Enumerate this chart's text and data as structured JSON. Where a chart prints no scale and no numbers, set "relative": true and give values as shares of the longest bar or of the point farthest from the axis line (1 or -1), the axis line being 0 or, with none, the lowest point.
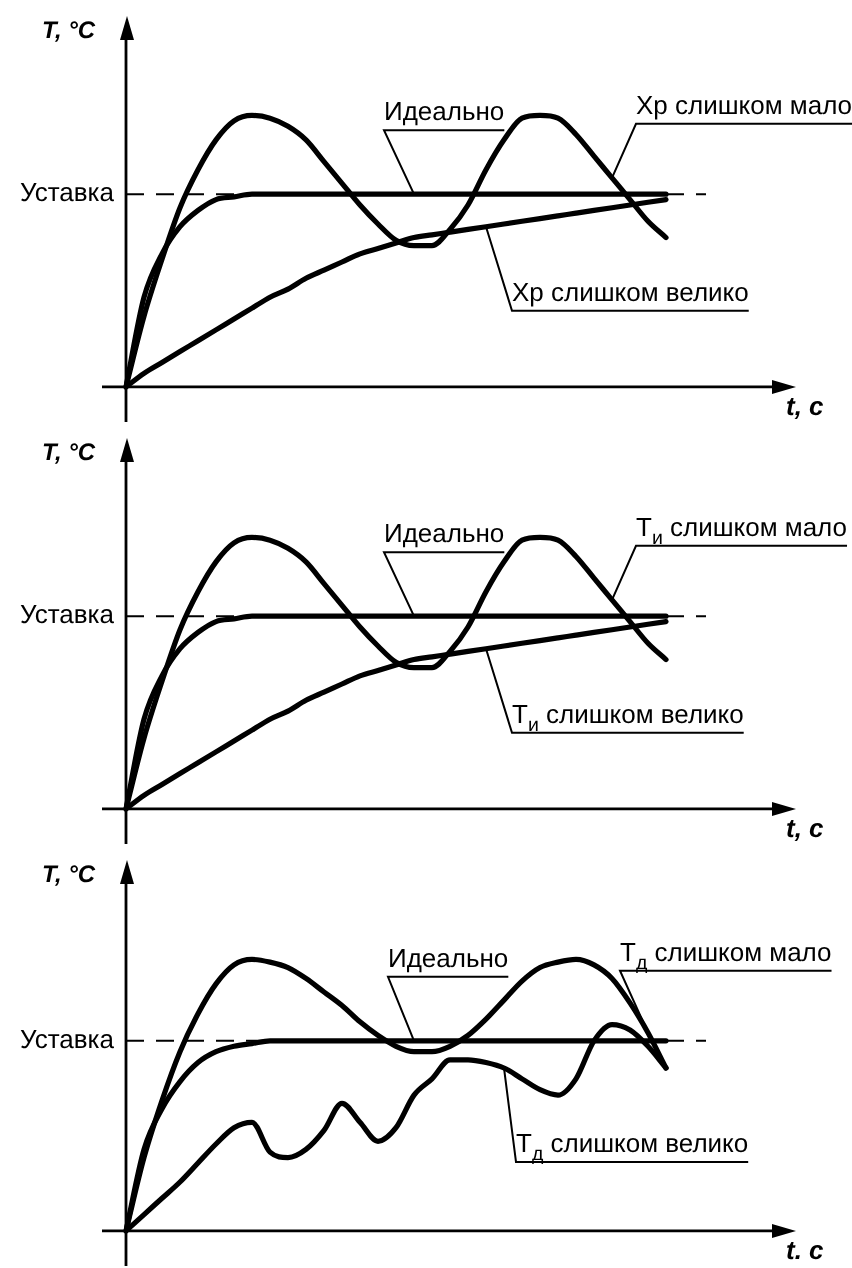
{
  "chart_data": [
    {
      "type": "line",
      "xlabel": "t, c",
      "ylabel": "T, °C",
      "relative": true,
      "legend": false,
      "grid": false,
      "tick_labels": false,
      "marker": "none",
      "line_style": "solid",
      "categories": [
        null,
        null,
        null,
        null,
        null,
        null,
        null,
        null,
        null,
        null,
        null,
        null,
        null,
        null,
        null,
        null,
        null,
        null,
        null,
        null,
        null,
        null,
        null,
        null,
        null,
        null,
        null,
        null,
        null,
        null,
        null,
        null,
        null,
        null,
        null,
        null,
        null
      ],
      "ref_lines": [
        {
          "axis": "y",
          "value": 0.71,
          "label": "Уставка",
          "line_style": "dashed"
        }
      ],
      "series": [
        {
          "name": "Идеально",
          "color": "#000000",
          "values": [
            0,
            0.33,
            0.49,
            0.59,
            0.65,
            0.69,
            0.7,
            0.71,
            0.71,
            0.71,
            0.71,
            0.71,
            0.71,
            0.71,
            0.71,
            0.71,
            0.71,
            0.71,
            0.71,
            0.71,
            0.71,
            0.71,
            0.71,
            0.71,
            0.71,
            0.71,
            0.71,
            0.71,
            0.71,
            0.71,
            0.71,
            null,
            null,
            null,
            null,
            null,
            null
          ]
        },
        {
          "name": "Xp слишком мало",
          "color": "#000000",
          "values": [
            0,
            0.26,
            0.47,
            0.66,
            0.8,
            0.91,
            0.98,
            1,
            0.99,
            0.96,
            0.91,
            0.83,
            0.75,
            0.67,
            0.6,
            0.54,
            0.52,
            0.52,
            0.58,
            0.67,
            0.8,
            0.91,
            0.99,
            1,
            0.99,
            0.93,
            0.85,
            0.77,
            0.69,
            0.61,
            0.55,
            null,
            null,
            null,
            null,
            null,
            null
          ]
        },
        {
          "name": "Xp слишком велико",
          "color": "#000000",
          "values": [
            0,
            0.05,
            0.09,
            0.13,
            0.17,
            0.21,
            0.25,
            0.29,
            0.33,
            0.36,
            0.4,
            0.43,
            0.46,
            0.49,
            0.51,
            0.53,
            0.55,
            0.56,
            0.57,
            0.58,
            0.59,
            0.6,
            0.61,
            0.62,
            0.63,
            0.64,
            0.65,
            0.66,
            0.67,
            0.68,
            0.69,
            null,
            null,
            null,
            null,
            null,
            null
          ]
        }
      ]
    },
    {
      "type": "line",
      "xlabel": "t, c",
      "ylabel": "T, °C",
      "relative": true,
      "legend": false,
      "grid": false,
      "tick_labels": false,
      "marker": "none",
      "line_style": "solid",
      "categories": [
        null,
        null,
        null,
        null,
        null,
        null,
        null,
        null,
        null,
        null,
        null,
        null,
        null,
        null,
        null,
        null,
        null,
        null,
        null,
        null,
        null,
        null,
        null,
        null,
        null,
        null,
        null,
        null,
        null,
        null,
        null,
        null,
        null,
        null,
        null,
        null,
        null
      ],
      "ref_lines": [
        {
          "axis": "y",
          "value": 0.71,
          "label": "Уставка",
          "line_style": "dashed"
        }
      ],
      "series": [
        {
          "name": "Идеально",
          "color": "#000000",
          "values": [
            0,
            0.33,
            0.49,
            0.59,
            0.65,
            0.69,
            0.7,
            0.71,
            0.71,
            0.71,
            0.71,
            0.71,
            0.71,
            0.71,
            0.71,
            0.71,
            0.71,
            0.71,
            0.71,
            0.71,
            0.71,
            0.71,
            0.71,
            0.71,
            0.71,
            0.71,
            0.71,
            0.71,
            0.71,
            0.71,
            0.71,
            null,
            null,
            null,
            null,
            null,
            null
          ]
        },
        {
          "name": "T$_{и}$ слишком мало",
          "color": "#000000",
          "values": [
            0,
            0.26,
            0.47,
            0.66,
            0.8,
            0.91,
            0.98,
            1,
            0.99,
            0.96,
            0.91,
            0.83,
            0.75,
            0.67,
            0.6,
            0.54,
            0.52,
            0.52,
            0.58,
            0.67,
            0.8,
            0.91,
            0.99,
            1,
            0.99,
            0.93,
            0.85,
            0.77,
            0.69,
            0.61,
            0.55,
            null,
            null,
            null,
            null,
            null,
            null
          ]
        },
        {
          "name": "T$_{и}$ слишком велико",
          "color": "#000000",
          "values": [
            0,
            0.05,
            0.09,
            0.13,
            0.17,
            0.21,
            0.25,
            0.29,
            0.33,
            0.36,
            0.4,
            0.43,
            0.46,
            0.49,
            0.51,
            0.53,
            0.55,
            0.56,
            0.57,
            0.58,
            0.59,
            0.6,
            0.61,
            0.62,
            0.63,
            0.64,
            0.65,
            0.66,
            0.67,
            0.68,
            0.69,
            null,
            null,
            null,
            null,
            null,
            null
          ]
        }
      ]
    },
    {
      "type": "line",
      "xlabel": "t. c",
      "ylabel": "T, °C",
      "relative": true,
      "legend": false,
      "grid": false,
      "tick_labels": false,
      "marker": "none",
      "line_style": "solid",
      "categories": [
        null,
        null,
        null,
        null,
        null,
        null,
        null,
        null,
        null,
        null,
        null,
        null,
        null,
        null,
        null,
        null,
        null,
        null,
        null,
        null,
        null,
        null,
        null,
        null,
        null,
        null,
        null,
        null,
        null,
        null,
        null,
        null,
        null,
        null,
        null,
        null,
        null
      ],
      "ref_lines": [
        {
          "axis": "y",
          "value": 0.7,
          "label": "Уставка",
          "line_style": "dashed"
        }
      ],
      "series": [
        {
          "name": "Идеально",
          "color": "#000000",
          "values": [
            0,
            0.3,
            0.45,
            0.55,
            0.62,
            0.66,
            0.68,
            0.69,
            0.7,
            0.7,
            0.7,
            0.7,
            0.7,
            0.7,
            0.7,
            0.7,
            0.7,
            0.7,
            0.7,
            0.7,
            0.7,
            0.7,
            0.7,
            0.7,
            0.7,
            0.7,
            0.7,
            0.7,
            0.7,
            0.7,
            0.7,
            null,
            null,
            null,
            null,
            null,
            null
          ]
        },
        {
          "name": "T$_{д}$ слишком мало",
          "color": "#000000",
          "values": [
            0,
            0.27,
            0.48,
            0.66,
            0.8,
            0.91,
            0.98,
            1,
            0.99,
            0.97,
            0.93,
            0.88,
            0.83,
            0.77,
            0.72,
            0.68,
            0.66,
            0.66,
            0.68,
            0.72,
            0.78,
            0.85,
            0.92,
            0.97,
            0.99,
            1,
            0.98,
            0.93,
            0.84,
            0.73,
            0.6,
            null,
            null,
            null,
            null,
            null,
            null
          ]
        },
        {
          "name": "T$_{д}$ слишком велико",
          "color": "#000000",
          "values": [
            0,
            0.06,
            0.12,
            0.18,
            0.25,
            0.32,
            0.38,
            0.4,
            0.29,
            0.27,
            0.3,
            0.37,
            0.47,
            0.4,
            0.33,
            0.38,
            0.5,
            0.56,
            0.63,
            0.63,
            0.62,
            0.6,
            0.56,
            0.52,
            0.5,
            0.56,
            0.7,
            0.76,
            0.74,
            0.68,
            0.6,
            null,
            null,
            null,
            null,
            null,
            null
          ]
        }
      ]
    }
  ]
}
